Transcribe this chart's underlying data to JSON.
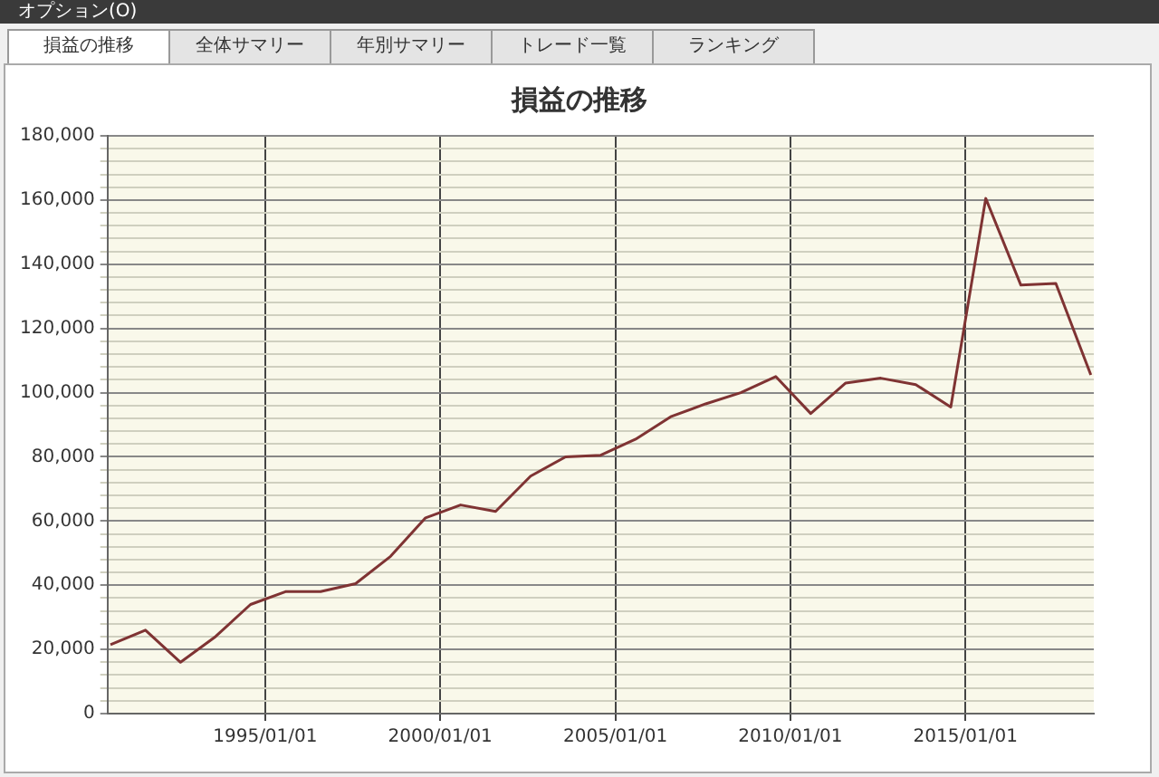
{
  "chart_data": {
    "type": "line",
    "title": "損益の推移",
    "annotations": [
      "オプション(O)",
      "損益の推移",
      "全体サマリー",
      "年別サマリー",
      "トレード一覧",
      "ランキング"
    ],
    "x": [
      "1990-08",
      "1991-08",
      "1992-08",
      "1993-08",
      "1994-08",
      "1995-08",
      "1996-08",
      "1997-08",
      "1998-08",
      "1999-08",
      "2000-08",
      "2001-08",
      "2002-08",
      "2003-08",
      "2004-08",
      "2005-08",
      "2006-08",
      "2007-08",
      "2008-08",
      "2009-08",
      "2010-08",
      "2011-08",
      "2012-08",
      "2013-08",
      "2014-08",
      "2015-08",
      "2016-08",
      "2017-08",
      "2018-08"
    ],
    "series": [
      {
        "color": "#7f3333",
        "values": [
          21500,
          26000,
          16000,
          24000,
          34000,
          38000,
          38000,
          40500,
          49000,
          61000,
          65000,
          63000,
          74000,
          80000,
          80500,
          85500,
          92500,
          96500,
          100000,
          105000,
          93500,
          103000,
          104500,
          102500,
          95500,
          160500,
          133500,
          134000,
          105500
        ]
      }
    ],
    "xlim": [
      "1990-07",
      "2018-09"
    ],
    "xticks": [
      {
        "value": "1995-01-01",
        "label": "1995/01/01"
      },
      {
        "value": "2000-01-01",
        "label": "2000/01/01"
      },
      {
        "value": "2005-01-01",
        "label": "2005/01/01"
      },
      {
        "value": "2010-01-01",
        "label": "2010/01/01"
      },
      {
        "value": "2015-01-01",
        "label": "2015/01/01"
      }
    ],
    "ylim": [
      0,
      180000
    ],
    "yticks": [
      0,
      {
        "value": 4000,
        "label": null
      },
      {
        "value": 8000,
        "label": null
      },
      {
        "value": 12000,
        "label": null
      },
      {
        "value": 16000,
        "label": null
      },
      {
        "value": 20000,
        "label": "20,000"
      },
      {
        "value": 24000,
        "label": null
      },
      {
        "value": 28000,
        "label": null
      },
      {
        "value": 32000,
        "label": null
      },
      {
        "value": 36000,
        "label": null
      },
      {
        "value": 40000,
        "label": "40,000"
      },
      {
        "value": 44000,
        "label": null
      },
      {
        "value": 48000,
        "label": null
      },
      {
        "value": 52000,
        "label": null
      },
      {
        "value": 56000,
        "label": null
      },
      {
        "value": 60000,
        "label": "60,000"
      },
      {
        "value": 64000,
        "label": null
      },
      {
        "value": 68000,
        "label": null
      },
      {
        "value": 72000,
        "label": null
      },
      {
        "value": 76000,
        "label": null
      },
      {
        "value": 80000,
        "label": "80,000"
      },
      {
        "value": 84000,
        "label": null
      },
      {
        "value": 88000,
        "label": null
      },
      {
        "value": 92000,
        "label": null
      },
      {
        "value": 96000,
        "label": null
      },
      {
        "value": 100000,
        "label": "100,000"
      },
      {
        "value": 104000,
        "label": null
      },
      {
        "value": 108000,
        "label": null
      },
      {
        "value": 112000,
        "label": null
      },
      {
        "value": 116000,
        "label": null
      },
      {
        "value": 120000,
        "label": "120,000"
      },
      {
        "value": 124000,
        "label": null
      },
      {
        "value": 128000,
        "label": null
      },
      {
        "value": 132000,
        "label": null
      },
      {
        "value": 136000,
        "label": null
      },
      {
        "value": 140000,
        "label": "140,000"
      },
      {
        "value": 144000,
        "label": null
      },
      {
        "value": 148000,
        "label": null
      },
      {
        "value": 152000,
        "label": null
      },
      {
        "value": 156000,
        "label": null
      },
      {
        "value": 160000,
        "label": "160,000"
      },
      {
        "value": 164000,
        "label": null
      },
      {
        "value": 168000,
        "label": null
      },
      {
        "value": 172000,
        "label": null
      },
      {
        "value": 176000,
        "label": null
      },
      {
        "value": 180000,
        "label": "180,000"
      }
    ],
    "grid": true,
    "legend": false,
    "marker": "none",
    "line_style": "solid"
  }
}
